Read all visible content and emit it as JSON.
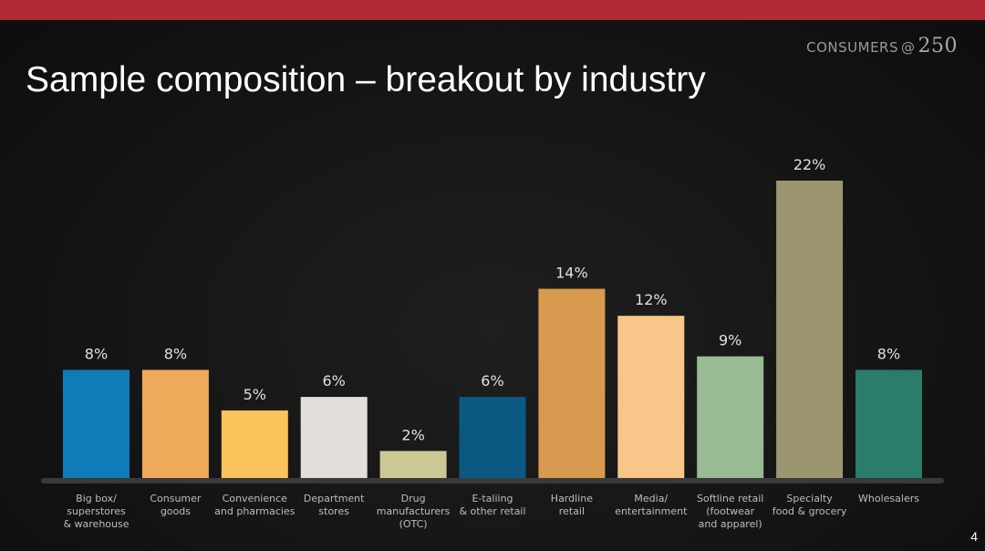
{
  "brand": {
    "word": "CONSUMERS",
    "at": "@",
    "number": "250"
  },
  "slide": {
    "title": "Sample composition – breakout by industry",
    "page_number": "4"
  },
  "colors": {
    "top_bar": "#b22a35",
    "label_text": "#e0e0e0",
    "tick_text": "#bdbdbd",
    "baseline": "#3a3a3a"
  },
  "chart_data": {
    "type": "bar",
    "title": "",
    "xlabel": "",
    "ylabel": "",
    "ylim": [
      0,
      22
    ],
    "grid": false,
    "categories": [
      "Big box/\nsuperstores\n& warehouse",
      "Consumer\ngoods",
      "Convenience\nand pharmacies",
      "Department\nstores",
      "Drug\nmanufacturers\n(OTC)",
      "E-taliing\n& other retail",
      "Hardline\nretail",
      "Media/\nentertainment",
      "Softline retail\n(footwear\nand apparel)",
      "Specialty\nfood & grocery",
      "Wholesalers"
    ],
    "values": [
      8,
      8,
      5,
      6,
      2,
      6,
      14,
      12,
      9,
      22,
      8
    ],
    "data_labels": [
      "8%",
      "8%",
      "5%",
      "6%",
      "2%",
      "6%",
      "14%",
      "12%",
      "9%",
      "22%",
      "8%"
    ],
    "bar_colors": [
      "#0f7cb8",
      "#eea95a",
      "#fbc35b",
      "#e2deda",
      "#cbc896",
      "#0b5883",
      "#d89a4e",
      "#f7c688",
      "#98bb93",
      "#9c9670",
      "#2a7c6b"
    ]
  }
}
